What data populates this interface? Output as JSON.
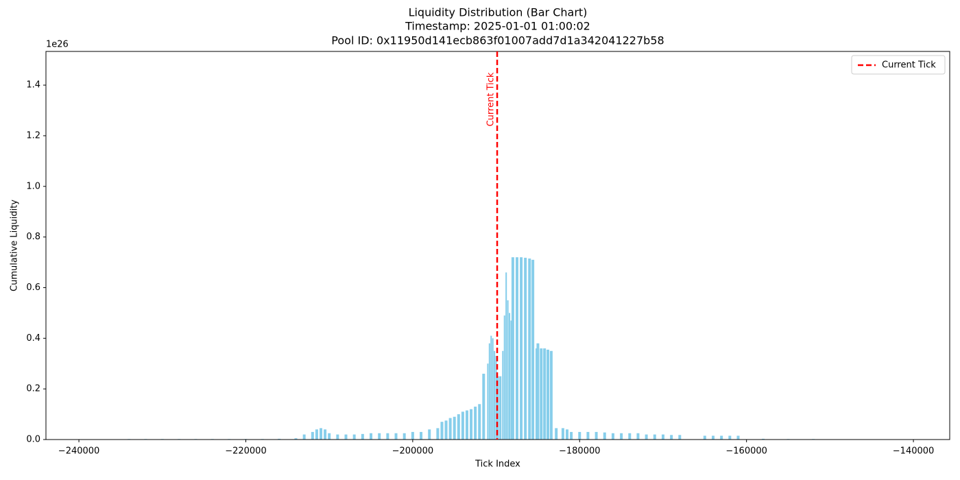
{
  "chart_data": {
    "type": "bar",
    "title": "Liquidity Distribution (Bar Chart)",
    "subtitle": [
      "Timestamp: 2025-01-01 01:00:02",
      "Pool ID: 0x11950d141ecb863f01007add7d1a342041227b58"
    ],
    "x_label": "Tick Index",
    "y_label": "Cumulative Liquidity",
    "y_offset_label": "1e26",
    "color": "#87ceeb",
    "x": [
      -240000,
      -238000,
      -236000,
      -234000,
      -232000,
      -230000,
      -228000,
      -226000,
      -224000,
      -222000,
      -220000,
      -218000,
      -216000,
      -214000,
      -213000,
      -212000,
      -211500,
      -211000,
      -210500,
      -210000,
      -209000,
      -208000,
      -207000,
      -206000,
      -205000,
      -204000,
      -203000,
      -202000,
      -201000,
      -200000,
      -199000,
      -198000,
      -197000,
      -196500,
      -196000,
      -195500,
      -195000,
      -194500,
      -194000,
      -193500,
      -193000,
      -192500,
      -192000,
      -191500,
      -191000,
      -190800,
      -190600,
      -190400,
      -190200,
      -190000,
      -189800,
      -189500,
      -189200,
      -189000,
      -188800,
      -188600,
      -188400,
      -188200,
      -188000,
      -187500,
      -187000,
      -186500,
      -186000,
      -185600,
      -185200,
      -185000,
      -184600,
      -184200,
      -183800,
      -183400,
      -182800,
      -182000,
      -181500,
      -181000,
      -180000,
      -179000,
      -178000,
      -177000,
      -176000,
      -175000,
      -174000,
      -173000,
      -172000,
      -171000,
      -170000,
      -169000,
      -168000,
      -165000,
      -164000,
      -163000,
      -162000,
      -161000,
      -158000,
      -155000,
      -152000,
      -149000,
      -146000
    ],
    "values": [
      0.001,
      0.001,
      0.001,
      0.002,
      0.002,
      0.002,
      0.002,
      0.002,
      0.002,
      0.002,
      0.002,
      0.002,
      0.003,
      0.005,
      0.02,
      0.03,
      0.04,
      0.045,
      0.04,
      0.025,
      0.02,
      0.02,
      0.02,
      0.022,
      0.025,
      0.025,
      0.025,
      0.025,
      0.025,
      0.03,
      0.03,
      0.04,
      0.045,
      0.07,
      0.075,
      0.085,
      0.09,
      0.1,
      0.11,
      0.115,
      0.12,
      0.13,
      0.14,
      0.26,
      0.3,
      0.38,
      0.41,
      0.4,
      0.35,
      0.33,
      0.25,
      0.25,
      0.35,
      0.49,
      0.66,
      0.55,
      0.5,
      0.47,
      0.72,
      0.72,
      0.72,
      0.718,
      0.715,
      0.71,
      0.36,
      0.38,
      0.36,
      0.36,
      0.355,
      0.35,
      0.045,
      0.045,
      0.04,
      0.03,
      0.03,
      0.03,
      0.03,
      0.028,
      0.025,
      0.025,
      0.025,
      0.025,
      0.02,
      0.02,
      0.02,
      0.018,
      0.018,
      0.015,
      0.015,
      0.015,
      0.015,
      0.015,
      0.003,
      0.002,
      0.002,
      0.001,
      0.001
    ],
    "reference_line": {
      "name": "Current Tick",
      "value": -189880,
      "color": "#ff0000"
    },
    "annotation": "Current Tick",
    "legend_position": "upper right",
    "xlim": [
      -243950,
      -135650
    ],
    "ylim": [
      0,
      1.533
    ],
    "xticks": [
      {
        "value": -240000,
        "label": "−240000"
      },
      {
        "value": -220000,
        "label": "−220000"
      },
      {
        "value": -200000,
        "label": "−200000"
      },
      {
        "value": -180000,
        "label": "−180000"
      },
      {
        "value": -160000,
        "label": "−160000"
      },
      {
        "value": -140000,
        "label": "−140000"
      }
    ],
    "yticks": [
      {
        "value": 0,
        "label": "0.0"
      },
      0.2,
      0.4,
      0.6,
      0.8,
      {
        "value": 1,
        "label": "1.0"
      },
      1.2,
      1.4
    ]
  }
}
